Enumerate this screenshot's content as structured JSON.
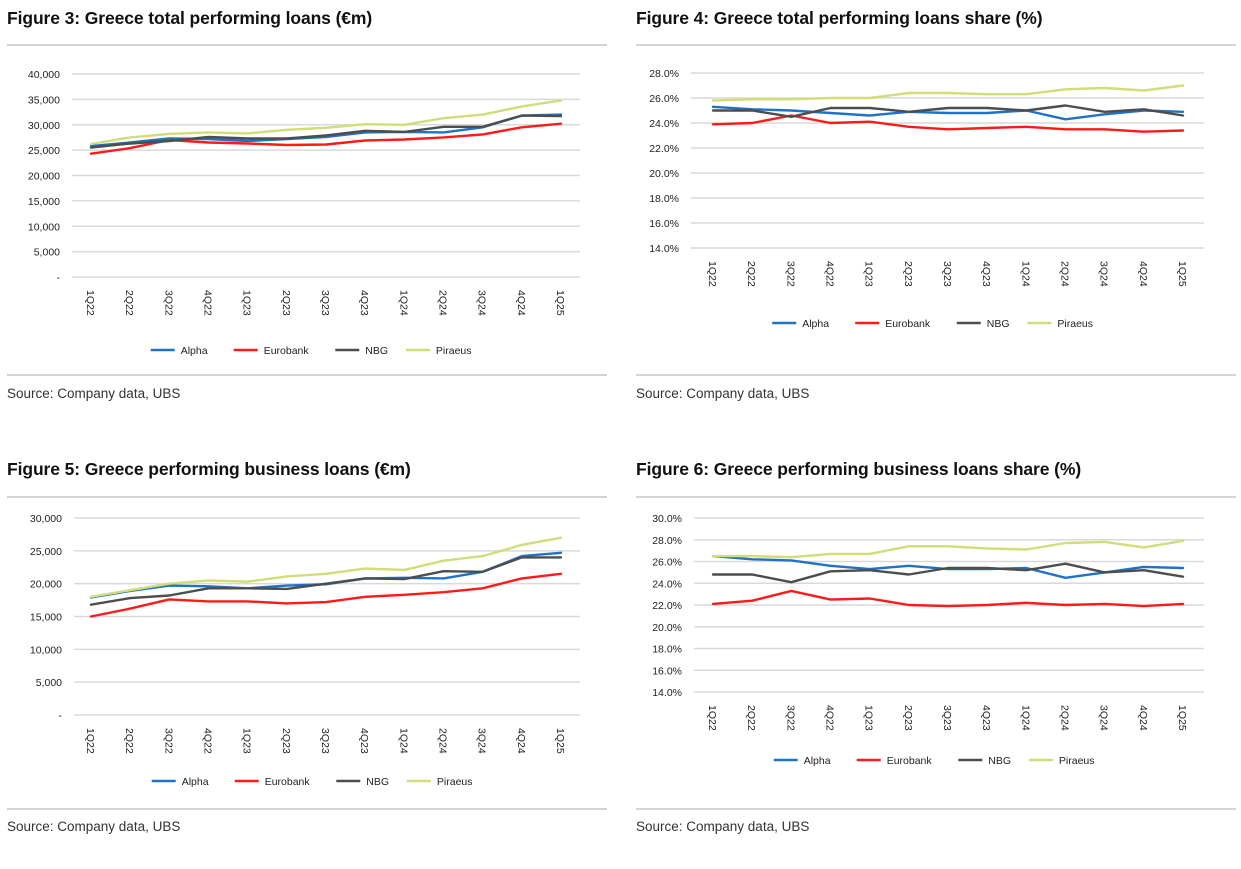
{
  "chart_data": [
    {
      "id": "fig3",
      "type": "line",
      "title": "Figure 3: Greece total performing loans (€m)",
      "source": "Source: Company data, UBS",
      "xlabel": "",
      "ylabel": "",
      "categories": [
        "1Q22",
        "2Q22",
        "3Q22",
        "4Q22",
        "1Q23",
        "2Q23",
        "3Q23",
        "4Q23",
        "1Q24",
        "2Q24",
        "3Q24",
        "4Q24",
        "1Q25"
      ],
      "ylim": [
        0,
        40000
      ],
      "yticks": [
        0,
        5000,
        10000,
        15000,
        20000,
        25000,
        30000,
        35000,
        40000
      ],
      "ytick_labels": [
        "-",
        "5,000",
        "10,000",
        "15,000",
        "20,000",
        "25,000",
        "30,000",
        "35,000",
        "40,000"
      ],
      "grid": true,
      "legend_position": "bottom",
      "series": [
        {
          "name": "Alpha",
          "color": "#1f72c4",
          "values": [
            25800,
            26500,
            27300,
            27200,
            26800,
            27200,
            27600,
            28500,
            28600,
            28500,
            29500,
            31800,
            32000
          ]
        },
        {
          "name": "Eurobank",
          "color": "#ff1a1a",
          "values": [
            24300,
            25400,
            27000,
            26500,
            26300,
            26000,
            26100,
            26900,
            27100,
            27500,
            28100,
            29500,
            30200
          ]
        },
        {
          "name": "NBG",
          "color": "#4d4d4d",
          "values": [
            25500,
            26300,
            26800,
            27600,
            27300,
            27300,
            27900,
            28800,
            28600,
            29600,
            29600,
            31800,
            31700
          ]
        },
        {
          "name": "Piraeus",
          "color": "#d2dc78",
          "values": [
            26200,
            27500,
            28200,
            28500,
            28300,
            29000,
            29400,
            30100,
            30000,
            31300,
            32000,
            33600,
            34800
          ]
        }
      ]
    },
    {
      "id": "fig4",
      "type": "line",
      "title": "Figure 4: Greece total performing loans share (%)",
      "source": "Source: Company data, UBS",
      "xlabel": "",
      "ylabel": "",
      "categories": [
        "1Q22",
        "2Q22",
        "3Q22",
        "4Q22",
        "1Q23",
        "2Q23",
        "3Q23",
        "4Q23",
        "1Q24",
        "2Q24",
        "3Q24",
        "4Q24",
        "1Q25"
      ],
      "ylim": [
        14,
        28
      ],
      "yticks": [
        14,
        16,
        18,
        20,
        22,
        24,
        26,
        28
      ],
      "ytick_labels": [
        "14.0%",
        "16.0%",
        "18.0%",
        "20.0%",
        "22.0%",
        "24.0%",
        "26.0%",
        "28.0%"
      ],
      "grid": true,
      "legend_position": "bottom",
      "series": [
        {
          "name": "Alpha",
          "color": "#1f72c4",
          "values": [
            25.3,
            25.1,
            25.0,
            24.8,
            24.6,
            24.9,
            24.8,
            24.8,
            25.0,
            24.3,
            24.7,
            25.0,
            24.9
          ]
        },
        {
          "name": "Eurobank",
          "color": "#ff1a1a",
          "values": [
            23.9,
            24.0,
            24.6,
            24.0,
            24.1,
            23.7,
            23.5,
            23.6,
            23.7,
            23.5,
            23.5,
            23.3,
            23.4
          ]
        },
        {
          "name": "NBG",
          "color": "#4d4d4d",
          "values": [
            25.0,
            25.0,
            24.5,
            25.2,
            25.2,
            24.9,
            25.2,
            25.2,
            25.0,
            25.4,
            24.9,
            25.1,
            24.6
          ]
        },
        {
          "name": "Piraeus",
          "color": "#d2dc78",
          "values": [
            25.8,
            25.9,
            25.9,
            26.0,
            26.0,
            26.4,
            26.4,
            26.3,
            26.3,
            26.7,
            26.8,
            26.6,
            27.0
          ]
        }
      ]
    },
    {
      "id": "fig5",
      "type": "line",
      "title": "Figure 5: Greece performing business loans (€m)",
      "source": "Source: Company data, UBS",
      "xlabel": "",
      "ylabel": "",
      "categories": [
        "1Q22",
        "2Q22",
        "3Q22",
        "4Q22",
        "1Q23",
        "2Q23",
        "3Q23",
        "4Q23",
        "1Q24",
        "2Q24",
        "3Q24",
        "4Q24",
        "1Q25"
      ],
      "ylim": [
        0,
        30000
      ],
      "yticks": [
        0,
        5000,
        10000,
        15000,
        20000,
        25000,
        30000
      ],
      "ytick_labels": [
        "-",
        "5,000",
        "10,000",
        "15,000",
        "20,000",
        "25,000",
        "30,000"
      ],
      "grid": true,
      "legend_position": "bottom",
      "series": [
        {
          "name": "Alpha",
          "color": "#1f72c4",
          "values": [
            17900,
            18900,
            19700,
            19600,
            19300,
            19700,
            19900,
            20800,
            20900,
            20800,
            21800,
            24200,
            24700
          ]
        },
        {
          "name": "Eurobank",
          "color": "#ff1a1a",
          "values": [
            15000,
            16200,
            17600,
            17300,
            17300,
            17000,
            17200,
            18000,
            18300,
            18700,
            19300,
            20800,
            21500
          ]
        },
        {
          "name": "NBG",
          "color": "#4d4d4d",
          "values": [
            16800,
            17800,
            18200,
            19300,
            19300,
            19200,
            20000,
            20800,
            20700,
            21900,
            21800,
            24000,
            24000
          ]
        },
        {
          "name": "Piraeus",
          "color": "#d2dc78",
          "values": [
            18000,
            19000,
            20000,
            20500,
            20300,
            21100,
            21500,
            22300,
            22100,
            23500,
            24200,
            25900,
            27000
          ]
        }
      ]
    },
    {
      "id": "fig6",
      "type": "line",
      "title": "Figure 6: Greece performing business loans share (%)",
      "source": "Source: Company data, UBS",
      "xlabel": "",
      "ylabel": "",
      "categories": [
        "1Q22",
        "2Q22",
        "3Q22",
        "4Q22",
        "1Q23",
        "2Q23",
        "3Q23",
        "4Q23",
        "1Q24",
        "2Q24",
        "3Q24",
        "4Q24",
        "1Q25"
      ],
      "ylim": [
        14,
        30
      ],
      "yticks": [
        14,
        16,
        18,
        20,
        22,
        24,
        26,
        28,
        30
      ],
      "ytick_labels": [
        "14.0%",
        "16.0%",
        "18.0%",
        "20.0%",
        "22.0%",
        "24.0%",
        "26.0%",
        "28.0%",
        "30.0%"
      ],
      "grid": true,
      "legend_position": "bottom",
      "series": [
        {
          "name": "Alpha",
          "color": "#1f72c4",
          "values": [
            26.5,
            26.2,
            26.1,
            25.6,
            25.3,
            25.6,
            25.3,
            25.3,
            25.4,
            24.5,
            25.0,
            25.5,
            25.4
          ]
        },
        {
          "name": "Eurobank",
          "color": "#ff1a1a",
          "values": [
            22.1,
            22.4,
            23.3,
            22.5,
            22.6,
            22.0,
            21.9,
            22.0,
            22.2,
            22.0,
            22.1,
            21.9,
            22.1
          ]
        },
        {
          "name": "NBG",
          "color": "#4d4d4d",
          "values": [
            24.8,
            24.8,
            24.1,
            25.1,
            25.2,
            24.8,
            25.4,
            25.4,
            25.2,
            25.8,
            25.0,
            25.2,
            24.6
          ]
        },
        {
          "name": "Piraeus",
          "color": "#d2dc78",
          "values": [
            26.5,
            26.5,
            26.4,
            26.7,
            26.7,
            27.4,
            27.4,
            27.2,
            27.1,
            27.7,
            27.8,
            27.3,
            27.9
          ]
        }
      ]
    }
  ]
}
